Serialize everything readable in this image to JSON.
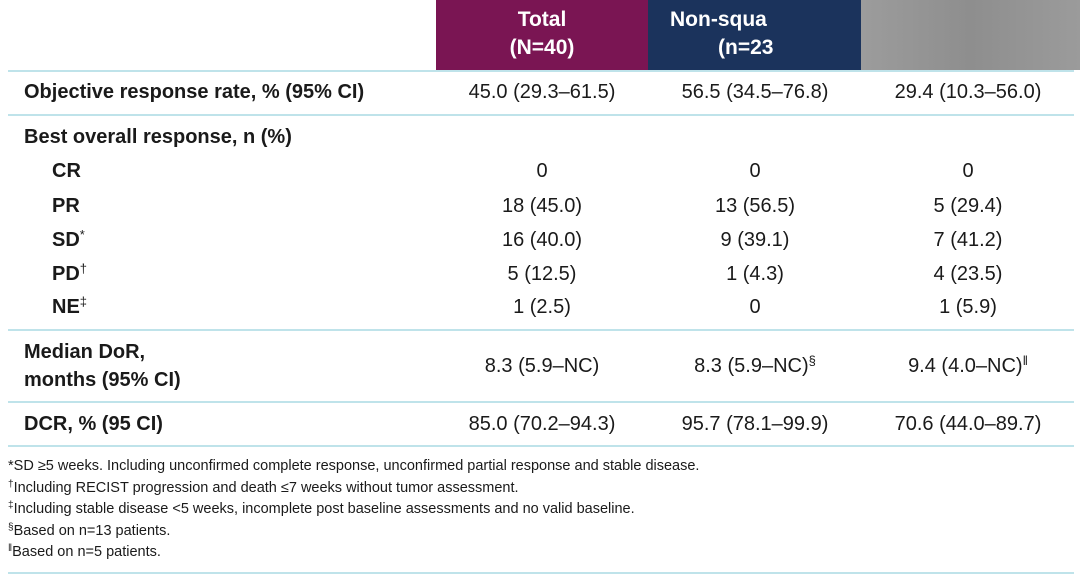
{
  "header": {
    "total_line1": "Total",
    "total_line2": "(N=40)",
    "nonsq_line1": "Non-squa",
    "nonsq_line2": "(n=23",
    "sq_line1": ""
  },
  "rows": {
    "orr": {
      "label": "Objective response rate, % (95% CI)",
      "v1": "45.0 (29.3–61.5)",
      "v2": "56.5 (34.5–76.8)",
      "v3": "29.4 (10.3–56.0)"
    },
    "bor": {
      "label": "Best overall response, n (%)"
    },
    "cr": {
      "label": "CR",
      "v1": "0",
      "v2": "0",
      "v3": "0"
    },
    "pr": {
      "label": "PR",
      "v1": "18 (45.0)",
      "v2": "13 (56.5)",
      "v3": "5 (29.4)"
    },
    "sd": {
      "label": "SD",
      "mark": "*",
      "v1": "16 (40.0)",
      "v2": "9 (39.1)",
      "v3": "7 (41.2)"
    },
    "pd": {
      "label": "PD",
      "mark": "†",
      "v1": "5 (12.5)",
      "v2": "1 (4.3)",
      "v3": "4 (23.5)"
    },
    "ne": {
      "label": "NE",
      "mark": "‡",
      "v1": "1 (2.5)",
      "v2": "0",
      "v3": "1 (5.9)"
    },
    "dor": {
      "label_line1": "Median DoR,",
      "label_line2": "months (95% CI)",
      "v1": "8.3 (5.9–NC)",
      "v2": "8.3 (5.9–NC)",
      "v2_mark": "§",
      "v3": "9.4 (4.0–NC)",
      "v3_mark": "ǁ"
    },
    "dcr": {
      "label": "DCR, % (95 CI)",
      "v1": "85.0 (70.2–94.3)",
      "v2": "95.7 (78.1–99.9)",
      "v3": "70.6 (44.0–89.7)"
    }
  },
  "footnotes": [
    {
      "mark": "",
      "text": "*SD ≥5 weeks. Including unconfirmed complete response, unconfirmed partial response and stable disease."
    },
    {
      "mark": "†",
      "text": "Including RECIST progression and death ≤7 weeks without tumor assessment."
    },
    {
      "mark": "‡",
      "text": "Including stable disease <5 weeks, incomplete post baseline assessments and no valid baseline."
    },
    {
      "mark": "§",
      "text": "Based on n=13 patients."
    },
    {
      "mark": "ǁ",
      "text": "Based on n=5 patients."
    }
  ],
  "colors": {
    "total_header": "#7a1553",
    "nonsq_header": "#1b335c",
    "sq_header": "#999999",
    "divider": "#bfe3ea"
  }
}
